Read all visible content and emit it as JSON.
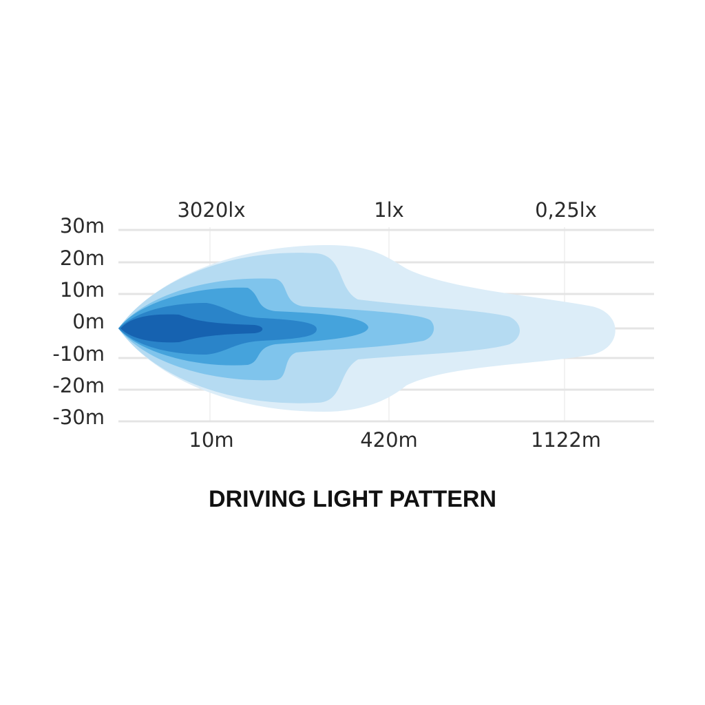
{
  "title": "DRIVING LIGHT PATTERN",
  "lux_labels": [
    "3020lx",
    "1lx",
    "0,25lx"
  ],
  "y_labels": [
    "30m",
    "20m",
    "10m",
    "0m",
    "-10m",
    "-20m",
    "-30m"
  ],
  "x_labels": [
    "10m",
    "420m",
    "1122m"
  ]
}
